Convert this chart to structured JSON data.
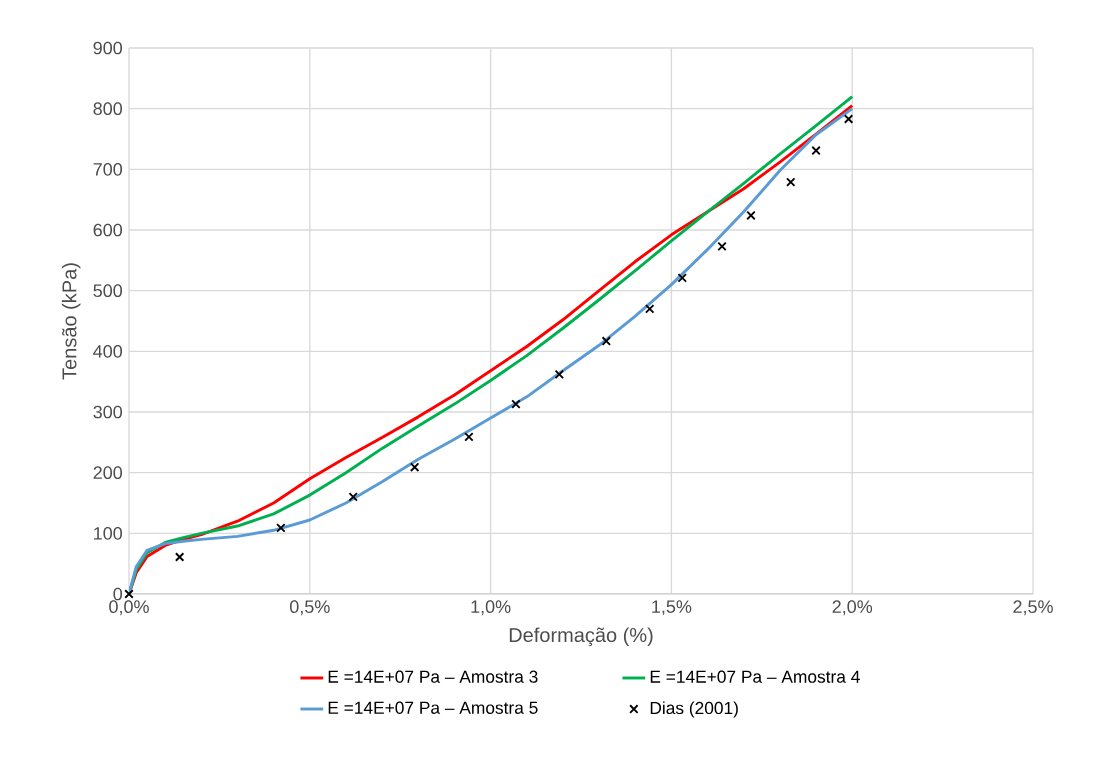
{
  "chart_data": {
    "type": "line",
    "xlabel": "Deformação (%)",
    "ylabel": "Tensão (kPa)",
    "xlim": [
      0,
      2.5
    ],
    "ylim": [
      0,
      900
    ],
    "xticks": [
      {
        "value": 0,
        "label": "0,0%"
      },
      {
        "value": 0.5,
        "label": "0,5%"
      },
      {
        "value": 1,
        "label": "1,0%"
      },
      {
        "value": 1.5,
        "label": "1,5%"
      },
      {
        "value": 2,
        "label": "2,0%"
      },
      {
        "value": 2.5,
        "label": "2,5%"
      }
    ],
    "yticks": [
      0,
      100,
      200,
      300,
      400,
      500,
      600,
      700,
      800,
      900
    ],
    "grid": true,
    "legend": "bottom",
    "marker": "none",
    "line_style": "solid",
    "series": [
      {
        "name": "E =14E+07 Pa – Amostra 3",
        "color": "#ff0000",
        "x": [
          0,
          0.02,
          0.05,
          0.1,
          0.15,
          0.2,
          0.3,
          0.4,
          0.5,
          0.6,
          0.7,
          0.8,
          0.9,
          1.0,
          1.1,
          1.2,
          1.3,
          1.4,
          1.5,
          1.6,
          1.7,
          1.8,
          1.9,
          2.0
        ],
        "values": [
          0,
          35,
          62,
          80,
          90,
          98,
          120,
          150,
          190,
          225,
          258,
          292,
          328,
          368,
          408,
          452,
          500,
          548,
          592,
          630,
          668,
          712,
          758,
          805
        ]
      },
      {
        "name": "E =14E+07 Pa – Amostra 4",
        "color": "#00b050",
        "x": [
          0,
          0.02,
          0.05,
          0.1,
          0.15,
          0.2,
          0.3,
          0.4,
          0.5,
          0.6,
          0.7,
          0.8,
          0.9,
          1.0,
          1.1,
          1.2,
          1.3,
          1.4,
          1.5,
          1.6,
          1.7,
          1.8,
          1.9,
          2.0
        ],
        "values": [
          0,
          40,
          68,
          85,
          93,
          100,
          112,
          132,
          163,
          200,
          240,
          277,
          313,
          352,
          393,
          438,
          485,
          533,
          582,
          630,
          677,
          725,
          772,
          820
        ]
      },
      {
        "name": "E =14E+07 Pa – Amostra 5",
        "color": "#5b9bd5",
        "x": [
          0,
          0.02,
          0.05,
          0.1,
          0.15,
          0.2,
          0.3,
          0.4,
          0.5,
          0.6,
          0.7,
          0.8,
          0.9,
          1.0,
          1.1,
          1.2,
          1.3,
          1.4,
          1.5,
          1.6,
          1.7,
          1.8,
          1.9,
          2.0
        ],
        "values": [
          0,
          45,
          72,
          83,
          87,
          90,
          95,
          105,
          122,
          150,
          185,
          222,
          255,
          290,
          325,
          368,
          410,
          458,
          510,
          568,
          630,
          698,
          757,
          800
        ]
      },
      {
        "name": "Dias (2001)",
        "type": "scatter",
        "marker": "cross",
        "color": "#000000",
        "x": [
          0,
          0.14,
          0.42,
          0.62,
          0.79,
          0.94,
          1.07,
          1.19,
          1.32,
          1.44,
          1.53,
          1.64,
          1.72,
          1.83,
          1.9,
          1.99
        ],
        "values": [
          0,
          61,
          109,
          160,
          209,
          259,
          313,
          362,
          417,
          470,
          521,
          573,
          624,
          679,
          731,
          783
        ]
      }
    ]
  }
}
